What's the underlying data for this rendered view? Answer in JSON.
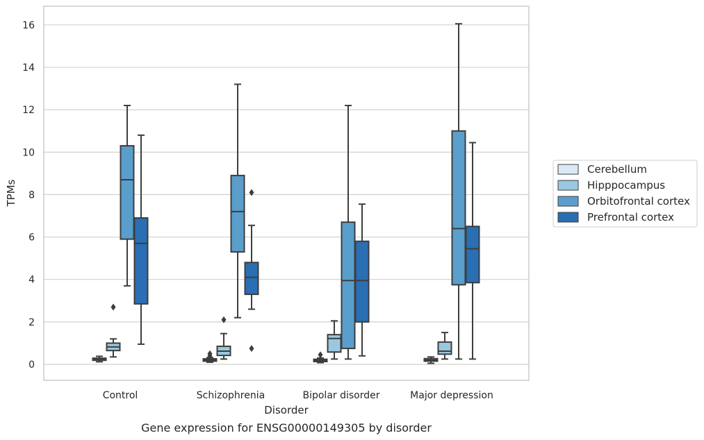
{
  "chart_data": {
    "type": "box",
    "caption": "Gene expression for ENSG00000149305 by disorder",
    "xlabel": "Disorder",
    "ylabel": "TPMs",
    "ylim": [
      -0.7,
      16.85
    ],
    "yticks": [
      0,
      2,
      4,
      6,
      8,
      10,
      12,
      14,
      16
    ],
    "grid": true,
    "legend_position": "right",
    "categories": [
      "Control",
      "Schizophrenia",
      "Bipolar disorder",
      "Major depression"
    ],
    "series": [
      {
        "name": "Cerebellum",
        "color": "#dbe9f6",
        "boxes": [
          {
            "whislo": 0.12,
            "q1": 0.19,
            "med": 0.25,
            "q3": 0.29,
            "whishi": 0.38,
            "fliers": []
          },
          {
            "whislo": 0.1,
            "q1": 0.15,
            "med": 0.2,
            "q3": 0.26,
            "whishi": 0.32,
            "fliers": [
              0.5,
              0.4
            ]
          },
          {
            "whislo": 0.08,
            "q1": 0.13,
            "med": 0.18,
            "q3": 0.24,
            "whishi": 0.3,
            "fliers": [
              0.45
            ]
          },
          {
            "whislo": 0.05,
            "q1": 0.15,
            "med": 0.21,
            "q3": 0.27,
            "whishi": 0.35,
            "fliers": []
          }
        ]
      },
      {
        "name": "Hipppocampus",
        "color": "#9ac8e0",
        "boxes": [
          {
            "whislo": 0.35,
            "q1": 0.65,
            "med": 0.82,
            "q3": 1.0,
            "whishi": 1.2,
            "fliers": [
              2.7
            ]
          },
          {
            "whislo": 0.25,
            "q1": 0.42,
            "med": 0.62,
            "q3": 0.85,
            "whishi": 1.45,
            "fliers": [
              2.1
            ]
          },
          {
            "whislo": 0.25,
            "q1": 0.58,
            "med": 1.22,
            "q3": 1.4,
            "whishi": 2.05,
            "fliers": []
          },
          {
            "whislo": 0.25,
            "q1": 0.48,
            "med": 0.62,
            "q3": 1.05,
            "whishi": 1.5,
            "fliers": []
          }
        ]
      },
      {
        "name": "Orbitofrontal cortex",
        "color": "#5a9ecc",
        "boxes": [
          {
            "whislo": 3.7,
            "q1": 5.9,
            "med": 8.7,
            "q3": 10.3,
            "whishi": 12.2,
            "fliers": []
          },
          {
            "whislo": 2.2,
            "q1": 5.3,
            "med": 7.2,
            "q3": 8.9,
            "whishi": 13.2,
            "fliers": []
          },
          {
            "whislo": 0.25,
            "q1": 0.75,
            "med": 3.95,
            "q3": 6.7,
            "whishi": 12.2,
            "fliers": []
          },
          {
            "whislo": 0.25,
            "q1": 3.75,
            "med": 6.4,
            "q3": 11.0,
            "whishi": 16.05,
            "fliers": []
          }
        ]
      },
      {
        "name": "Prefrontal cortex",
        "color": "#2a6eb3",
        "boxes": [
          {
            "whislo": 0.95,
            "q1": 2.85,
            "med": 5.7,
            "q3": 6.9,
            "whishi": 10.8,
            "fliers": []
          },
          {
            "whislo": 2.6,
            "q1": 3.3,
            "med": 4.1,
            "q3": 4.8,
            "whishi": 6.55,
            "fliers": [
              8.1,
              0.75
            ]
          },
          {
            "whislo": 0.4,
            "q1": 2.0,
            "med": 3.95,
            "q3": 5.8,
            "whishi": 7.55,
            "fliers": []
          },
          {
            "whislo": 0.25,
            "q1": 3.85,
            "med": 5.45,
            "q3": 6.5,
            "whishi": 10.45,
            "fliers": []
          }
        ]
      }
    ]
  }
}
